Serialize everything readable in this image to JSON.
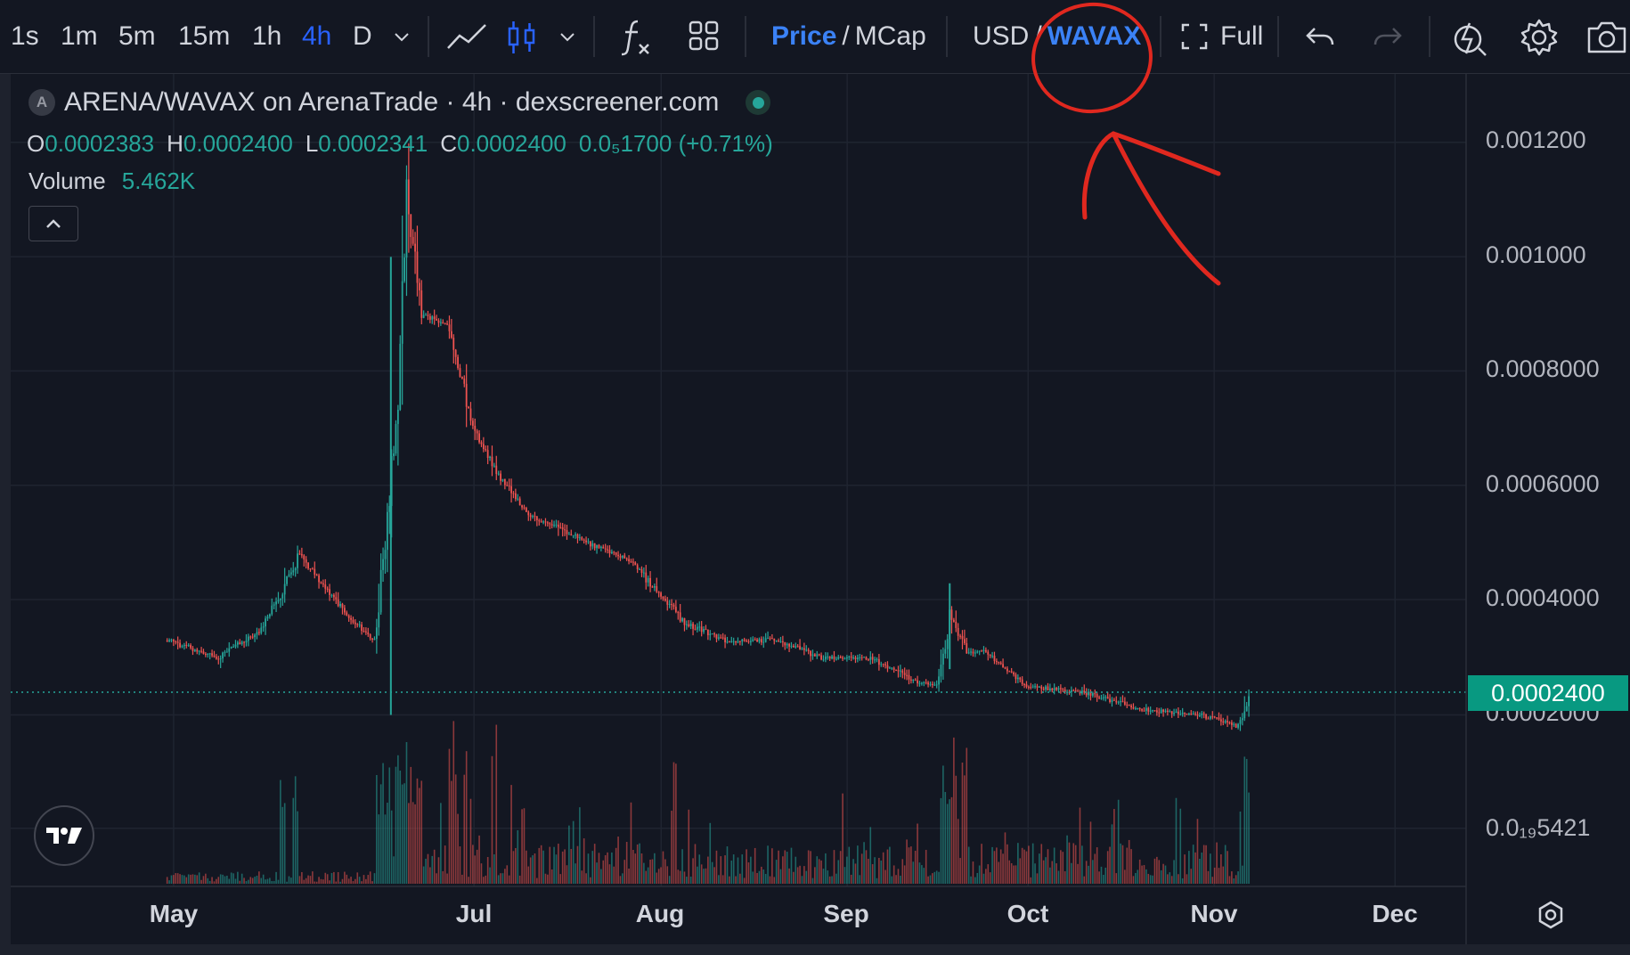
{
  "toolbar": {
    "timeframes": [
      "1s",
      "1m",
      "5m",
      "15m",
      "1h",
      "4h",
      "D"
    ],
    "active_timeframe": "4h",
    "price_label": "Price",
    "mcap_label": "MCap",
    "slash": "/",
    "usd_label": "USD",
    "wavax_label": "WAVAX",
    "full_label": "Full"
  },
  "legend": {
    "badge": "A",
    "title": "ARENA/WAVAX on ArenaTrade · 4h · dexscreener.com",
    "o_label": "O",
    "o_value": "0.0002383",
    "h_label": "H",
    "h_value": "0.0002400",
    "l_label": "L",
    "l_value": "0.0002341",
    "c_label": "C",
    "c_value": "0.0002400",
    "change": "0.0₅1700 (+0.71%)",
    "volume_label": "Volume",
    "volume_value": "5.462K"
  },
  "price_axis": {
    "ticks": [
      "0.001200",
      "0.001000",
      "0.0008000",
      "0.0006000",
      "0.0004000",
      "0.0002000",
      "0.0₁₉5421"
    ],
    "current_price": "0.0002400"
  },
  "time_axis": {
    "ticks": [
      "May",
      "Jul",
      "Aug",
      "Sep",
      "Oct",
      "Nov",
      "Dec"
    ]
  },
  "colors": {
    "background": "#131722",
    "up": "#26a69a",
    "down": "#ef5350",
    "accent": "#2962ff",
    "annotation": "#e0281f"
  },
  "icons": [
    "chevron-down-icon",
    "line-chart-icon",
    "candles-icon",
    "indicators-icon",
    "layout-icon",
    "fullscreen-icon",
    "undo-icon",
    "redo-icon",
    "replay-icon",
    "settings-icon",
    "camera-icon",
    "tradingview-logo",
    "axis-settings-icon",
    "collapse-chevron-icon"
  ],
  "chart_data": {
    "type": "candlestick",
    "pair": "ARENA/WAVAX",
    "interval": "4h",
    "x_ticks": [
      "May",
      "Jul",
      "Aug",
      "Sep",
      "Oct",
      "Nov",
      "Dec"
    ],
    "y_range": [
      5.42e-05,
      0.0013
    ],
    "close_series": [
      {
        "t": "Apr 28",
        "v": 0.00033
      },
      {
        "t": "May 10",
        "v": 0.0003
      },
      {
        "t": "May 20",
        "v": 0.00035
      },
      {
        "t": "May 28",
        "v": 0.00048
      },
      {
        "t": "Jun 8",
        "v": 0.00036
      },
      {
        "t": "Jun 12",
        "v": 0.00033
      },
      {
        "t": "Jun 16",
        "v": 0.0007
      },
      {
        "t": "Jun 18",
        "v": 0.0011
      },
      {
        "t": "Jun 21",
        "v": 0.0009
      },
      {
        "t": "Jun 26",
        "v": 0.00088
      },
      {
        "t": "Jul 1",
        "v": 0.0007
      },
      {
        "t": "Jul 5",
        "v": 0.00062
      },
      {
        "t": "Jul 10",
        "v": 0.00055
      },
      {
        "t": "Jul 20",
        "v": 0.0005
      },
      {
        "t": "Jul 27",
        "v": 0.00047
      },
      {
        "t": "Aug 5",
        "v": 0.00036
      },
      {
        "t": "Aug 12",
        "v": 0.00033
      },
      {
        "t": "Aug 20",
        "v": 0.00033
      },
      {
        "t": "Aug 28",
        "v": 0.0003
      },
      {
        "t": "Sep 5",
        "v": 0.0003
      },
      {
        "t": "Sep 12",
        "v": 0.00026
      },
      {
        "t": "Sep 16",
        "v": 0.00025
      },
      {
        "t": "Sep 18",
        "v": 0.00037
      },
      {
        "t": "Sep 21",
        "v": 0.00031
      },
      {
        "t": "Sep 24",
        "v": 0.00031
      },
      {
        "t": "Oct 1",
        "v": 0.00025
      },
      {
        "t": "Oct 10",
        "v": 0.00024
      },
      {
        "t": "Oct 20",
        "v": 0.00021
      },
      {
        "t": "Oct 30",
        "v": 0.0002
      },
      {
        "t": "Nov 5",
        "v": 0.00018
      },
      {
        "t": "Nov 7",
        "v": 0.00024
      }
    ],
    "current_price": 0.00024
  }
}
